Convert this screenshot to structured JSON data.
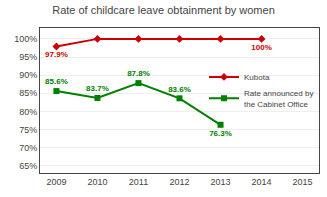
{
  "chart_data": {
    "type": "line",
    "title": "Rate of childcare leave obtainment by women",
    "x": [
      2009,
      2010,
      2011,
      2012,
      2013,
      2014
    ],
    "series": [
      {
        "name": "Kubota",
        "color": "#cc0000",
        "marker": "diamond",
        "values": [
          97.9,
          100.0,
          100.0,
          100.0,
          100.0,
          100.0
        ],
        "value_labels": [
          "97.9%",
          null,
          null,
          null,
          null,
          "100%"
        ]
      },
      {
        "name": "Rate announced by\nthe Cabinet Office",
        "color": "#008000",
        "marker": "square",
        "values": [
          85.6,
          83.7,
          87.8,
          83.6,
          76.3,
          null
        ],
        "value_labels": [
          "85.6%",
          "83.7%",
          "87.8%",
          "83.6%",
          "76.3%",
          null
        ]
      }
    ],
    "xlim": [
      2008.6,
      2015.4
    ],
    "xticks": [
      2009,
      2010,
      2011,
      2012,
      2013,
      2014,
      2015
    ],
    "ylim": [
      63,
      103
    ],
    "yticks": [
      {
        "value": 65,
        "label": "65%"
      },
      {
        "value": 70,
        "label": "70%"
      },
      {
        "value": 75,
        "label": "75%"
      },
      {
        "value": 80,
        "label": "80%"
      },
      {
        "value": 85,
        "label": "85%"
      },
      {
        "value": 90,
        "label": "90%"
      },
      {
        "value": 95,
        "label": "95%"
      },
      {
        "value": 100,
        "label": "100%"
      }
    ],
    "grid": "y",
    "legend": "right",
    "data_labels": true
  }
}
